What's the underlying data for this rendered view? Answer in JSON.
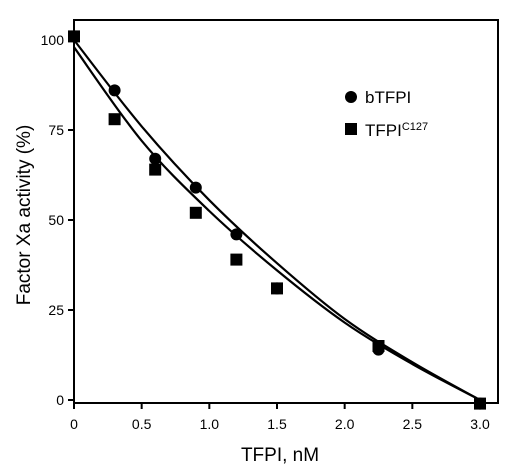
{
  "chart_data": {
    "type": "scatter",
    "xlabel": "TFPI, nM",
    "ylabel": "Factor Xa activity (%)",
    "xlim": [
      0,
      3.0
    ],
    "ylim": [
      0,
      100
    ],
    "x_ticks": [
      "0",
      "0.5",
      "1.0",
      "1.5",
      "2.0",
      "2.5",
      "3.0"
    ],
    "y_ticks": [
      "0",
      "25",
      "50",
      "75",
      "100"
    ],
    "x_tick_values": [
      0,
      0.5,
      1.0,
      1.5,
      2.0,
      2.5,
      3.0
    ],
    "y_tick_values": [
      0,
      25,
      50,
      75,
      100
    ],
    "grid": false,
    "legend_position": "top-right",
    "series": [
      {
        "name": "bTFPI",
        "legend_name": "bTFPI",
        "legend_sup": "",
        "marker": "circle",
        "x": [
          0,
          0.3,
          0.6,
          0.9,
          1.2,
          1.5,
          2.25,
          3.0
        ],
        "y": [
          101,
          86,
          67,
          59,
          46,
          31,
          14,
          -1
        ],
        "fit": [
          [
            0,
            100
          ],
          [
            0.5,
            76
          ],
          [
            1.0,
            55.5
          ],
          [
            1.5,
            38
          ],
          [
            2.0,
            22.5
          ],
          [
            2.5,
            10.5
          ],
          [
            3.0,
            0
          ]
        ]
      },
      {
        "name": "TFPIC127",
        "legend_name": "TFPI",
        "legend_sup": "C127",
        "marker": "square",
        "x": [
          0,
          0.3,
          0.6,
          0.9,
          1.2,
          1.5,
          2.25,
          3.0
        ],
        "y": [
          101,
          78,
          64,
          52,
          39,
          31,
          15,
          -1
        ],
        "fit": [
          [
            0,
            98
          ],
          [
            0.5,
            72
          ],
          [
            1.0,
            52.5
          ],
          [
            1.5,
            36
          ],
          [
            2.0,
            21.5
          ],
          [
            2.5,
            10
          ],
          [
            3.0,
            0
          ]
        ]
      }
    ]
  }
}
